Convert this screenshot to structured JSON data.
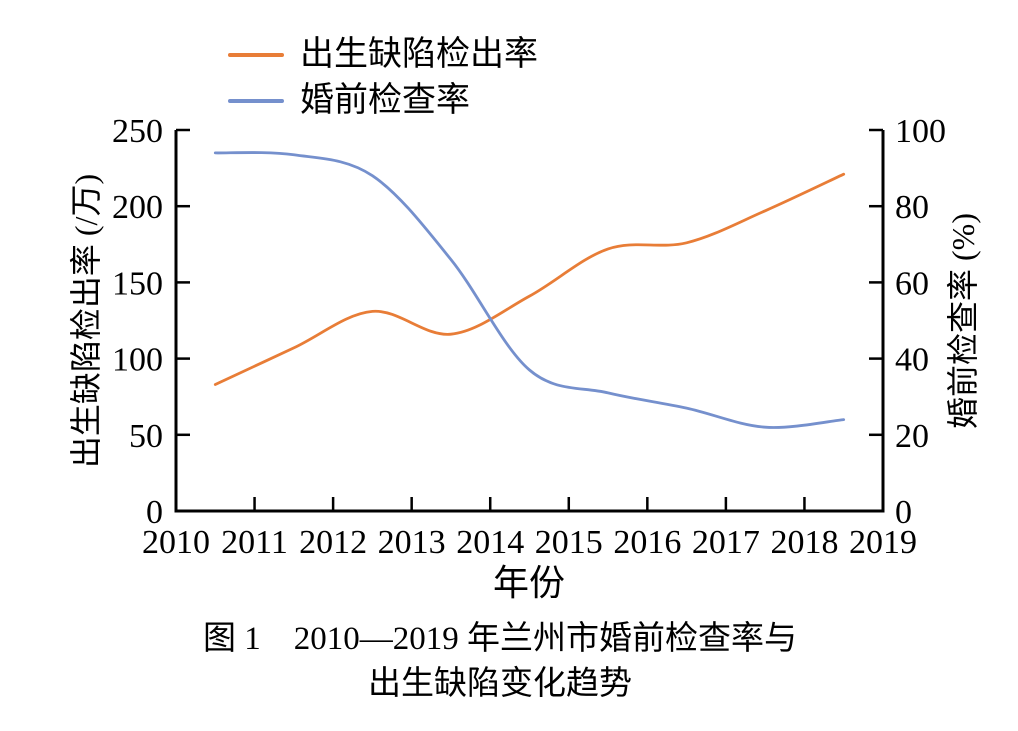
{
  "figure": {
    "caption_line1": "图 1　2010—2019 年兰州市婚前检查率与",
    "caption_line2": "出生缺陷变化趋势"
  },
  "chart_data": {
    "type": "line",
    "title": "",
    "xlabel": "年份",
    "ylabel_left": "出生缺陷检出率 (/万)",
    "ylabel_right": "婚前检查率 (%)",
    "xlim": [
      2010,
      2019
    ],
    "ylim_left": [
      0,
      250
    ],
    "ylim_right": [
      0,
      100
    ],
    "x_ticks": [
      "2010",
      "2011",
      "2012",
      "2013",
      "2014",
      "2015",
      "2016",
      "2017",
      "2018",
      "2019"
    ],
    "left_ticks": [
      0,
      50,
      100,
      150,
      200,
      250
    ],
    "right_ticks": [
      0,
      20,
      40,
      60,
      80,
      100
    ],
    "grid": false,
    "smooth": true,
    "legend_position": "top-left",
    "x": [
      2010.5,
      2011.5,
      2012.5,
      2013.5,
      2014.5,
      2015.5,
      2016.5,
      2017.5,
      2018.5
    ],
    "series": [
      {
        "name": "出生缺陷检出率",
        "axis": "left",
        "color": "#e87d37",
        "values": [
          83,
          107,
          131,
          116,
          141,
          172,
          176,
          197,
          221
        ]
      },
      {
        "name": "婚前检查率",
        "axis": "right",
        "color": "#7590cd",
        "values": [
          94,
          93.5,
          88,
          66,
          37,
          31,
          27,
          22,
          24
        ]
      }
    ]
  }
}
